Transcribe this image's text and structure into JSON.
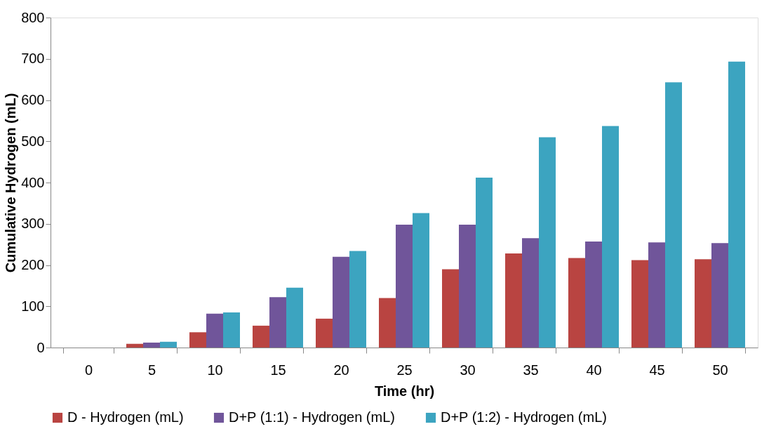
{
  "chart_data": {
    "type": "bar",
    "xlabel": "Time (hr)",
    "ylabel": "Cumulative Hydrogen (mL)",
    "categories": [
      "0",
      "5",
      "10",
      "15",
      "20",
      "25",
      "30",
      "35",
      "40",
      "45",
      "50"
    ],
    "series": [
      {
        "name": "D - Hydrogen (mL)",
        "color": "#b94441",
        "values": [
          0,
          9,
          37,
          53,
          70,
          120,
          190,
          228,
          217,
          212,
          214
        ]
      },
      {
        "name": "D+P (1:1) - Hydrogen (mL)",
        "color": "#70559a",
        "values": [
          0,
          12,
          82,
          122,
          220,
          298,
          298,
          265,
          257,
          255,
          253
        ]
      },
      {
        "name": "D+P (1:2) - Hydrogen (mL)",
        "color": "#3ca4c0",
        "values": [
          0,
          14,
          85,
          145,
          234,
          326,
          412,
          510,
          537,
          643,
          693
        ]
      }
    ],
    "ylim": [
      0,
      800
    ],
    "yticks": [
      0,
      100,
      200,
      300,
      400,
      500,
      600,
      700,
      800
    ],
    "grid": false,
    "legend": "bottom"
  }
}
